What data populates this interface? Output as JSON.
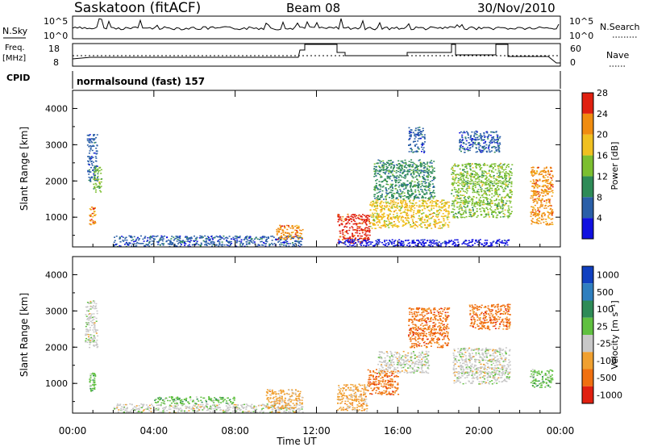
{
  "header": {
    "station": "Saskatoon (fitACF)",
    "beam": "Beam 08",
    "date": "30/Nov/2010"
  },
  "status_panels": {
    "nsky_label": "N.Sky",
    "nsky_ticks": [
      "10^5",
      "10^0"
    ],
    "nsearch_label": "N.Search",
    "nsearch_ticks": [
      "10^5",
      "10^0"
    ],
    "freq_label_1": "Freq.",
    "freq_label_2": "[MHz]",
    "freq_ticks": [
      "18",
      "8"
    ],
    "nave_label": "Nave",
    "nave_ticks": [
      "60",
      "0"
    ],
    "cpid_label": "CPID",
    "cpid_value": "normalsound (fast) 157"
  },
  "chart_data": [
    {
      "type": "heatmap",
      "title": "",
      "xlabel": "Time UT",
      "ylabel": "Slant Range [km]",
      "x_ticks": [
        "00:00",
        "04:00",
        "08:00",
        "12:00",
        "16:00",
        "20:00",
        "00:00"
      ],
      "xlim": [
        0,
        24
      ],
      "y_ticks": [
        "1000",
        "2000",
        "3000",
        "4000"
      ],
      "ylim": [
        180,
        4500
      ],
      "colorbar": {
        "label": "Power [dB]",
        "ticks": [
          "4",
          "8",
          "12",
          "16",
          "20",
          "24",
          "28"
        ],
        "colors": [
          "#1010e0",
          "#2a5fa8",
          "#2e8b57",
          "#7cbf30",
          "#f0c020",
          "#f08c10",
          "#e02010"
        ]
      },
      "regions": [
        {
          "t": [
            0.7,
            1.2
          ],
          "r": [
            2000,
            3300
          ],
          "level": 1
        },
        {
          "t": [
            0.8,
            1.1
          ],
          "r": [
            800,
            1300
          ],
          "level": 5
        },
        {
          "t": [
            1.0,
            1.4
          ],
          "r": [
            1700,
            2400
          ],
          "level": 3
        },
        {
          "t": [
            2.0,
            11.3
          ],
          "r": [
            200,
            500
          ],
          "level": 1
        },
        {
          "t": [
            10.0,
            11.3
          ],
          "r": [
            400,
            800
          ],
          "level": 5
        },
        {
          "t": [
            13.0,
            14.6
          ],
          "r": [
            300,
            1100
          ],
          "level": 6
        },
        {
          "t": [
            14.6,
            18.5
          ],
          "r": [
            700,
            1500
          ],
          "level": 4
        },
        {
          "t": [
            14.8,
            17.8
          ],
          "r": [
            1500,
            2600
          ],
          "level": 2
        },
        {
          "t": [
            16.5,
            17.3
          ],
          "r": [
            2800,
            3500
          ],
          "level": 1
        },
        {
          "t": [
            18.6,
            21.6
          ],
          "r": [
            1000,
            2500
          ],
          "level": 3
        },
        {
          "t": [
            19.0,
            21.0
          ],
          "r": [
            2800,
            3400
          ],
          "level": 1
        },
        {
          "t": [
            22.5,
            23.6
          ],
          "r": [
            800,
            2400
          ],
          "level": 5
        },
        {
          "t": [
            13.0,
            21.5
          ],
          "r": [
            200,
            400
          ],
          "level": 0
        }
      ]
    },
    {
      "type": "heatmap",
      "title": "",
      "xlabel": "Time UT",
      "ylabel": "Slant Range [km]",
      "x_ticks": [
        "00:00",
        "04:00",
        "08:00",
        "12:00",
        "16:00",
        "20:00",
        "00:00"
      ],
      "xlim": [
        0,
        24
      ],
      "y_ticks": [
        "1000",
        "2000",
        "3000",
        "4000"
      ],
      "ylim": [
        180,
        4500
      ],
      "colorbar": {
        "label": "Velocity [m s⁻¹]",
        "ticks": [
          "1000",
          "500",
          "100",
          "25",
          "-25",
          "-100",
          "-500",
          "-1000"
        ],
        "colors": [
          "#1040c0",
          "#2f7fbf",
          "#2e8b57",
          "#60c040",
          "#c8c8c8",
          "#f0a030",
          "#f07010",
          "#e02010"
        ]
      },
      "regions": [
        {
          "t": [
            0.6,
            1.2
          ],
          "r": [
            2000,
            3300
          ],
          "level": 4
        },
        {
          "t": [
            0.8,
            1.1
          ],
          "r": [
            800,
            1300
          ],
          "level": 3
        },
        {
          "t": [
            2.0,
            11.3
          ],
          "r": [
            200,
            450
          ],
          "level": 4
        },
        {
          "t": [
            4.0,
            8.0
          ],
          "r": [
            450,
            650
          ],
          "level": 3
        },
        {
          "t": [
            9.5,
            11.3
          ],
          "r": [
            300,
            850
          ],
          "level": 5
        },
        {
          "t": [
            13.0,
            14.5
          ],
          "r": [
            250,
            1000
          ],
          "level": 5
        },
        {
          "t": [
            14.5,
            16.0
          ],
          "r": [
            700,
            1400
          ],
          "level": 6
        },
        {
          "t": [
            15.0,
            17.5
          ],
          "r": [
            1300,
            1900
          ],
          "level": 4
        },
        {
          "t": [
            16.5,
            18.5
          ],
          "r": [
            2000,
            3100
          ],
          "level": 6
        },
        {
          "t": [
            18.7,
            21.5
          ],
          "r": [
            1000,
            2000
          ],
          "level": 4
        },
        {
          "t": [
            19.5,
            21.5
          ],
          "r": [
            2500,
            3200
          ],
          "level": 6
        },
        {
          "t": [
            22.5,
            23.6
          ],
          "r": [
            900,
            1400
          ],
          "level": 3
        }
      ]
    }
  ]
}
